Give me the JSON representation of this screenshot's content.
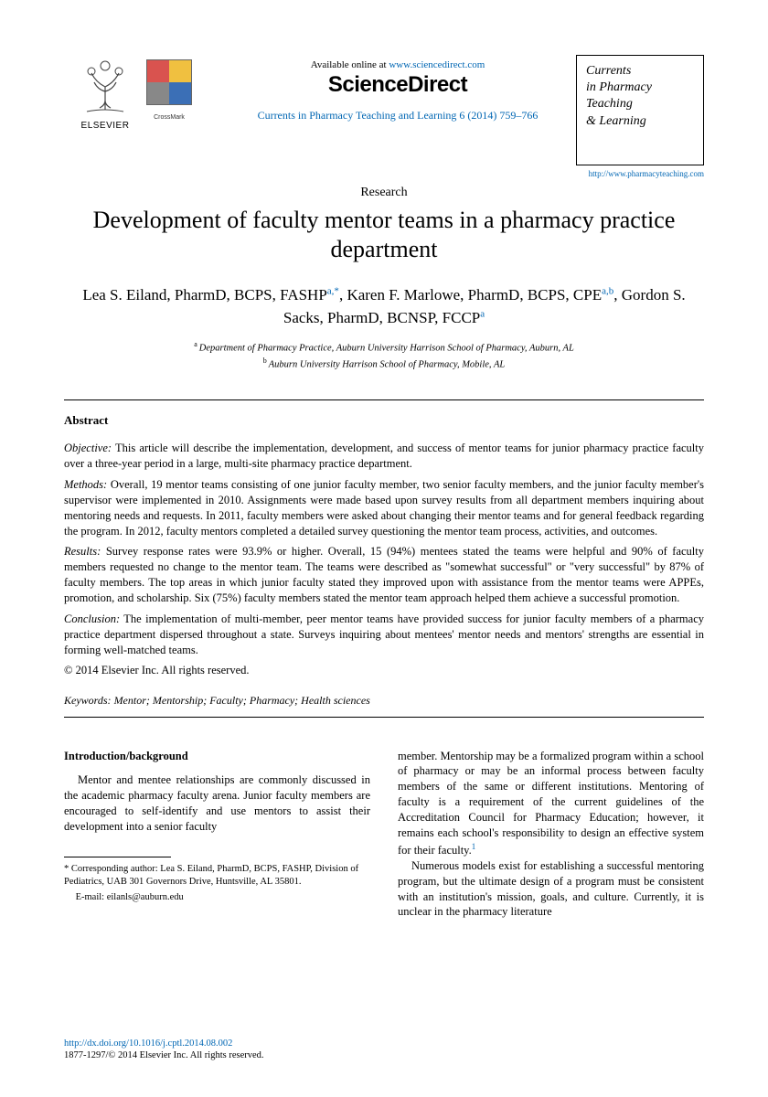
{
  "header": {
    "elsevier": "ELSEVIER",
    "crossmark": "CrossMark",
    "available_prefix": "Available online at ",
    "available_url": "www.sciencedirect.com",
    "sd_logo": "ScienceDirect",
    "citation": "Currents in Pharmacy Teaching and Learning 6 (2014) 759–766",
    "journal_lines": [
      "Currents",
      "in Pharmacy",
      "Teaching",
      "& Learning"
    ],
    "journal_url": "http://www.pharmacyteaching.com"
  },
  "article": {
    "type": "Research",
    "title": "Development of faculty mentor teams in a pharmacy practice department",
    "authors_html": "Lea S. Eiland, PharmD, BCPS, FASHP|a,*|, Karen F. Marlowe, PharmD, BCPS, CPE|a,b|, Gordon S. Sacks, PharmD, BCNSP, FCCP|a|",
    "affiliations": [
      {
        "marker": "a",
        "text": "Department of Pharmacy Practice, Auburn University Harrison School of Pharmacy, Auburn, AL"
      },
      {
        "marker": "b",
        "text": "Auburn University Harrison School of Pharmacy, Mobile, AL"
      }
    ]
  },
  "abstract": {
    "heading": "Abstract",
    "objective_label": "Objective:",
    "objective": "This article will describe the implementation, development, and success of mentor teams for junior pharmacy practice faculty over a three-year period in a large, multi-site pharmacy practice department.",
    "methods_label": "Methods:",
    "methods": "Overall, 19 mentor teams consisting of one junior faculty member, two senior faculty members, and the junior faculty member's supervisor were implemented in 2010. Assignments were made based upon survey results from all department members inquiring about mentoring needs and requests. In 2011, faculty members were asked about changing their mentor teams and for general feedback regarding the program. In 2012, faculty mentors completed a detailed survey questioning the mentor team process, activities, and outcomes.",
    "results_label": "Results:",
    "results": "Survey response rates were 93.9% or higher. Overall, 15 (94%) mentees stated the teams were helpful and 90% of faculty members requested no change to the mentor team. The teams were described as \"somewhat successful\" or \"very successful\" by 87% of faculty members. The top areas in which junior faculty stated they improved upon with assistance from the mentor teams were APPEs, promotion, and scholarship. Six (75%) faculty members stated the mentor team approach helped them achieve a successful promotion.",
    "conclusion_label": "Conclusion:",
    "conclusion": "The implementation of multi-member, peer mentor teams have provided success for junior faculty members of a pharmacy practice department dispersed throughout a state. Surveys inquiring about mentees' mentor needs and mentors' strengths are essential in forming well-matched teams.",
    "copyright": "© 2014 Elsevier Inc. All rights reserved."
  },
  "keywords": {
    "label": "Keywords:",
    "text": "Mentor; Mentorship; Faculty; Pharmacy; Health sciences"
  },
  "body": {
    "section_heading": "Introduction/background",
    "col1_p1": "Mentor and mentee relationships are commonly discussed in the academic pharmacy faculty arena. Junior faculty members are encouraged to self-identify and use mentors to assist their development into a senior faculty",
    "col2_p1": "member. Mentorship may be a formalized program within a school of pharmacy or may be an informal process between faculty members of the same or different institutions. Mentoring of faculty is a requirement of the current guidelines of the Accreditation Council for Pharmacy Education; however, it remains each school's responsibility to design an effective system for their faculty.",
    "col2_ref1": "1",
    "col2_p2": "Numerous models exist for establishing a successful mentoring program, but the ultimate design of a program must be consistent with an institution's mission, goals, and culture. Currently, it is unclear in the pharmacy literature"
  },
  "footnote": {
    "corr": "* Corresponding author: Lea S. Eiland, PharmD, BCPS, FASHP, Division of Pediatrics, UAB 301 Governors Drive, Huntsville, AL 35801.",
    "email_label": "E-mail: ",
    "email": "eilanls@auburn.edu"
  },
  "footer": {
    "doi": "http://dx.doi.org/10.1016/j.cptl.2014.08.002",
    "issn": "1877-1297/© 2014 Elsevier Inc. All rights reserved."
  },
  "colors": {
    "link": "#0066b3",
    "cm_red": "#d9534f",
    "cm_yellow": "#f0c040",
    "cm_blue": "#3b6fb6",
    "cm_grey": "#888888"
  }
}
